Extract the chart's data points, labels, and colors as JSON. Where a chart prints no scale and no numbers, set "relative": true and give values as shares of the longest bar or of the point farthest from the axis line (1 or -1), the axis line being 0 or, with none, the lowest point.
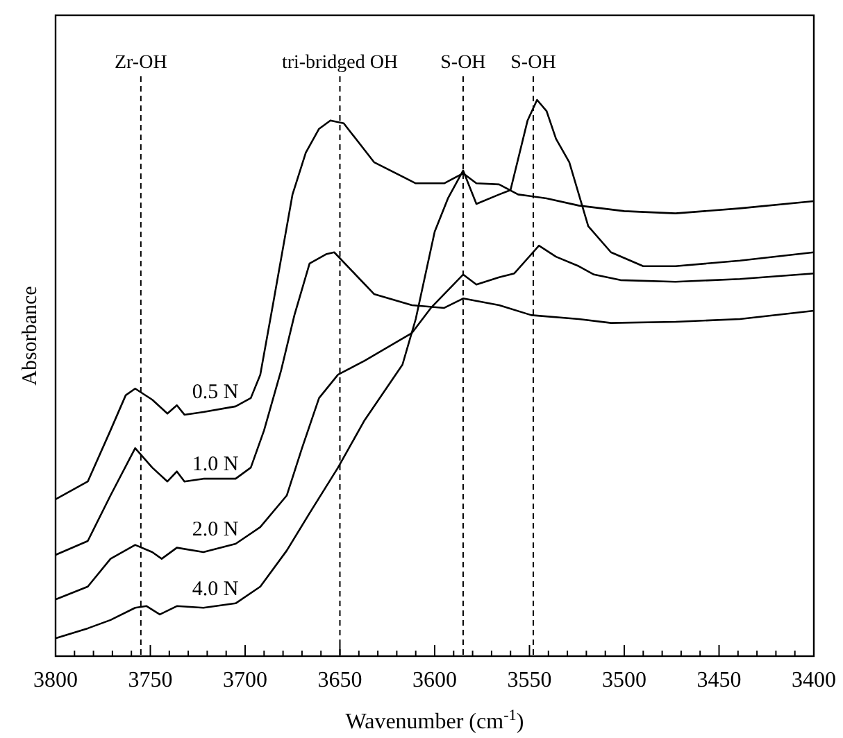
{
  "chart_data": {
    "type": "line",
    "relative": true,
    "xlabel": "Wavenumber (cm$^{-1}$)",
    "ylabel": "Absorbance",
    "xlim": [
      3800,
      3400
    ],
    "xticks": [
      3800,
      {
        "value": 3790,
        "label": null
      },
      {
        "value": 3780,
        "label": null
      },
      {
        "value": 3770,
        "label": null
      },
      {
        "value": 3760,
        "label": null
      },
      3750,
      {
        "value": 3740,
        "label": null
      },
      {
        "value": 3730,
        "label": null
      },
      {
        "value": 3720,
        "label": null
      },
      {
        "value": 3710,
        "label": null
      },
      3700,
      {
        "value": 3690,
        "label": null
      },
      {
        "value": 3680,
        "label": null
      },
      {
        "value": 3670,
        "label": null
      },
      {
        "value": 3660,
        "label": null
      },
      3650,
      {
        "value": 3640,
        "label": null
      },
      {
        "value": 3630,
        "label": null
      },
      {
        "value": 3620,
        "label": null
      },
      {
        "value": 3610,
        "label": null
      },
      3600,
      {
        "value": 3590,
        "label": null
      },
      {
        "value": 3580,
        "label": null
      },
      {
        "value": 3570,
        "label": null
      },
      {
        "value": 3560,
        "label": null
      },
      3550,
      {
        "value": 3540,
        "label": null
      },
      {
        "value": 3530,
        "label": null
      },
      {
        "value": 3520,
        "label": null
      },
      {
        "value": 3510,
        "label": null
      },
      3500,
      {
        "value": 3490,
        "label": null
      },
      {
        "value": 3480,
        "label": null
      },
      {
        "value": 3470,
        "label": null
      },
      {
        "value": 3460,
        "label": null
      },
      3450,
      {
        "value": 3440,
        "label": null
      },
      {
        "value": 3430,
        "label": null
      },
      {
        "value": 3420,
        "label": null
      },
      {
        "value": 3410,
        "label": null
      },
      3400
    ],
    "grid": false,
    "marker": "none",
    "line_style": "solid",
    "series": [
      {
        "name": "0.5 N",
        "color": "#000000",
        "x": [
          3800,
          3783,
          3771,
          3763,
          3758,
          3749,
          3741,
          3736,
          3732,
          3722,
          3705,
          3697,
          3692,
          3685,
          3675,
          3668,
          3661,
          3655,
          3648,
          3632,
          3610,
          3595,
          3585,
          3578,
          3566,
          3556,
          3541,
          3524,
          3500,
          3473,
          3439,
          3400
        ],
        "values": [
          0.282,
          0.314,
          0.406,
          0.469,
          0.481,
          0.461,
          0.436,
          0.451,
          0.434,
          0.439,
          0.449,
          0.464,
          0.506,
          0.638,
          0.83,
          0.905,
          0.948,
          0.963,
          0.958,
          0.888,
          0.85,
          0.85,
          0.868,
          0.85,
          0.848,
          0.83,
          0.823,
          0.81,
          0.8,
          0.796,
          0.805,
          0.818
        ]
      },
      {
        "name": "1.0 N",
        "color": "#000000",
        "x": [
          3800,
          3783,
          3771,
          3758,
          3749,
          3741,
          3736,
          3732,
          3722,
          3705,
          3697,
          3690,
          3681,
          3674,
          3666,
          3657,
          3653,
          3632,
          3612,
          3595,
          3585,
          3566,
          3549,
          3524,
          3507,
          3473,
          3439,
          3400
        ],
        "values": [
          0.182,
          0.207,
          0.289,
          0.374,
          0.339,
          0.314,
          0.332,
          0.314,
          0.319,
          0.319,
          0.339,
          0.406,
          0.514,
          0.613,
          0.706,
          0.723,
          0.726,
          0.651,
          0.631,
          0.626,
          0.643,
          0.631,
          0.613,
          0.606,
          0.599,
          0.601,
          0.606,
          0.621
        ]
      },
      {
        "name": "2.0 N",
        "color": "#000000",
        "x": [
          3800,
          3783,
          3771,
          3758,
          3749,
          3744,
          3736,
          3722,
          3705,
          3692,
          3678,
          3670,
          3661,
          3651,
          3637,
          3612,
          3602,
          3585,
          3578,
          3566,
          3558,
          3545,
          3536,
          3524,
          3516,
          3502,
          3473,
          3439,
          3400
        ],
        "values": [
          0.102,
          0.125,
          0.175,
          0.2,
          0.187,
          0.175,
          0.195,
          0.187,
          0.202,
          0.232,
          0.289,
          0.374,
          0.464,
          0.506,
          0.531,
          0.581,
          0.626,
          0.686,
          0.668,
          0.681,
          0.688,
          0.738,
          0.718,
          0.701,
          0.686,
          0.676,
          0.673,
          0.678,
          0.688
        ]
      },
      {
        "name": "4.0 N",
        "color": "#000000",
        "x": [
          3800,
          3783,
          3771,
          3758,
          3752,
          3745,
          3736,
          3722,
          3705,
          3692,
          3678,
          3666,
          3651,
          3637,
          3617,
          3610,
          3600,
          3593,
          3585,
          3578,
          3566,
          3560,
          3551,
          3546,
          3541,
          3536,
          3529,
          3519,
          3507,
          3490,
          3473,
          3439,
          3400
        ],
        "values": [
          0.032,
          0.05,
          0.065,
          0.087,
          0.09,
          0.075,
          0.09,
          0.087,
          0.095,
          0.125,
          0.19,
          0.257,
          0.339,
          0.424,
          0.524,
          0.606,
          0.763,
          0.823,
          0.873,
          0.813,
          0.83,
          0.838,
          0.963,
          1,
          0.98,
          0.93,
          0.888,
          0.773,
          0.726,
          0.701,
          0.701,
          0.711,
          0.726
        ]
      }
    ],
    "ref_lines": [
      {
        "axis": "x",
        "value": 3755,
        "label": "Zr-OH",
        "line_style": "dashed",
        "color": "#000000"
      },
      {
        "axis": "x",
        "value": 3650,
        "label": "tri-bridged OH",
        "line_style": "dashed",
        "color": "#000000"
      },
      {
        "axis": "x",
        "value": 3585,
        "label": "S-OH",
        "line_style": "dashed",
        "color": "#000000"
      },
      {
        "axis": "x",
        "value": 3548,
        "label": "S-OH",
        "line_style": "dashed",
        "color": "#000000"
      }
    ]
  }
}
